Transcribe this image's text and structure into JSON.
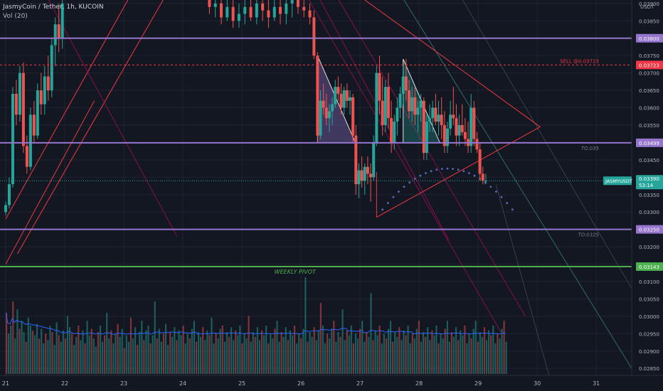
{
  "header": {
    "symbol_line": "JasmyCoin / Tether, 1h, KUCOIN",
    "indicator": "Vol (20)"
  },
  "axis_currency": "USDT",
  "price_ticks": [
    "0.03900",
    "0.03850",
    "0.03800",
    "0.03750",
    "0.03700",
    "0.03650",
    "0.03600",
    "0.03550",
    "0.03500",
    "0.03450",
    "0.03400",
    "0.03350",
    "0.03300",
    "0.03250",
    "0.03200",
    "0.03150",
    "0.03100",
    "0.03050",
    "0.03000",
    "0.02950",
    "0.02900",
    "0.02850"
  ],
  "date_ticks": [
    "21",
    "22",
    "23",
    "24",
    "25",
    "26",
    "27",
    "28",
    "29",
    "30",
    "31"
  ],
  "annotations": {
    "sell": "SELL @0.03723",
    "tp1": "TO.035",
    "tp2": "TO.0325",
    "pivot": "WEEKLY PIVOT"
  },
  "price_tags": {
    "resistance": "0.03800",
    "sell": "0.03723",
    "tp1": "0.03499",
    "current_symbol": "JASMYUSDT",
    "current_price": "0.03390",
    "countdown": "53:14",
    "tp2": "0.03250",
    "pivot": "0.03143"
  },
  "colors": {
    "background": "#131722",
    "up": "#26a69a",
    "down": "#ef5350",
    "level": "#9575cd",
    "pivot": "#4caf50",
    "sell": "#f23645",
    "trend": "#f23645",
    "channel": "#880e4f",
    "volume_ma": "#2962ff",
    "dots": "#5c6bc0"
  },
  "chart_data": {
    "type": "candlestick",
    "timeframe": "1h",
    "x_start": 21,
    "x_end": 31.6,
    "ylim": [
      0.0283,
      0.0391
    ],
    "horizontal_levels": [
      {
        "label": "resistance",
        "value": 0.038
      },
      {
        "label": "SELL @0.03723",
        "value": 0.03723
      },
      {
        "label": "TO.035",
        "value": 0.03499
      },
      {
        "label": "TO.0325",
        "value": 0.0325
      },
      {
        "label": "WEEKLY PIVOT",
        "value": 0.03143
      }
    ],
    "candles": [
      [
        21.0,
        0.033,
        0.0333,
        0.0329,
        0.0332
      ],
      [
        21.06,
        0.0332,
        0.034,
        0.0331,
        0.0338
      ],
      [
        21.12,
        0.0338,
        0.0366,
        0.0337,
        0.0364
      ],
      [
        21.18,
        0.0364,
        0.0368,
        0.0355,
        0.0358
      ],
      [
        21.24,
        0.0358,
        0.0372,
        0.0356,
        0.037
      ],
      [
        21.3,
        0.037,
        0.0373,
        0.0347,
        0.0349
      ],
      [
        21.36,
        0.0349,
        0.0352,
        0.0341,
        0.0343
      ],
      [
        21.42,
        0.0343,
        0.036,
        0.0342,
        0.0358
      ],
      [
        21.48,
        0.0358,
        0.0362,
        0.035,
        0.0352
      ],
      [
        21.54,
        0.0352,
        0.0367,
        0.0351,
        0.0365
      ],
      [
        21.6,
        0.0365,
        0.037,
        0.0358,
        0.0361
      ],
      [
        21.66,
        0.0361,
        0.0372,
        0.0358,
        0.0369
      ],
      [
        21.72,
        0.0369,
        0.0375,
        0.0362,
        0.0365
      ],
      [
        21.78,
        0.0365,
        0.038,
        0.0363,
        0.0378
      ],
      [
        21.84,
        0.0378,
        0.0386,
        0.0372,
        0.0384
      ],
      [
        21.9,
        0.0384,
        0.039,
        0.0376,
        0.038
      ],
      [
        21.96,
        0.038,
        0.0392,
        0.0377,
        0.039
      ],
      [
        24.45,
        0.0391,
        0.0392,
        0.0387,
        0.0389
      ],
      [
        24.55,
        0.0389,
        0.0391,
        0.0386,
        0.039
      ],
      [
        24.65,
        0.039,
        0.0391,
        0.0384,
        0.0386
      ],
      [
        24.75,
        0.0386,
        0.0391,
        0.0385,
        0.0389
      ],
      [
        24.85,
        0.0389,
        0.0391,
        0.0383,
        0.0385
      ],
      [
        24.95,
        0.0385,
        0.039,
        0.0383,
        0.0387
      ],
      [
        25.05,
        0.0387,
        0.0391,
        0.0384,
        0.0389
      ],
      [
        25.15,
        0.0389,
        0.0391,
        0.0385,
        0.0386
      ],
      [
        25.25,
        0.0386,
        0.0391,
        0.0384,
        0.039
      ],
      [
        25.35,
        0.039,
        0.0391,
        0.0385,
        0.0388
      ],
      [
        25.45,
        0.0388,
        0.0391,
        0.0383,
        0.0386
      ],
      [
        25.55,
        0.0386,
        0.0391,
        0.0385,
        0.0389
      ],
      [
        25.65,
        0.0389,
        0.0391,
        0.0384,
        0.0387
      ],
      [
        25.75,
        0.0387,
        0.0391,
        0.0384,
        0.039
      ],
      [
        25.85,
        0.039,
        0.0392,
        0.0386,
        0.0391
      ],
      [
        25.95,
        0.0391,
        0.0392,
        0.0387,
        0.0389
      ],
      [
        26.05,
        0.0389,
        0.0391,
        0.0386,
        0.0388
      ],
      [
        26.15,
        0.0388,
        0.039,
        0.0384,
        0.0386
      ],
      [
        26.22,
        0.0386,
        0.0388,
        0.0374,
        0.0375
      ],
      [
        26.28,
        0.0375,
        0.0376,
        0.035,
        0.0352
      ],
      [
        26.33,
        0.0352,
        0.0365,
        0.0351,
        0.0362
      ],
      [
        26.38,
        0.0362,
        0.0367,
        0.0358,
        0.036
      ],
      [
        26.43,
        0.036,
        0.0364,
        0.0355,
        0.0357
      ],
      [
        26.48,
        0.0357,
        0.0361,
        0.0353,
        0.0359
      ],
      [
        26.53,
        0.0359,
        0.0363,
        0.0355,
        0.0361
      ],
      [
        26.58,
        0.0361,
        0.0368,
        0.036,
        0.0366
      ],
      [
        26.63,
        0.0366,
        0.0369,
        0.0362,
        0.0364
      ],
      [
        26.68,
        0.0364,
        0.0367,
        0.0358,
        0.036
      ],
      [
        26.73,
        0.036,
        0.0366,
        0.0358,
        0.0365
      ],
      [
        26.78,
        0.0365,
        0.0367,
        0.036,
        0.0362
      ],
      [
        26.83,
        0.0362,
        0.0365,
        0.0358,
        0.0363
      ],
      [
        26.88,
        0.0363,
        0.0364,
        0.035,
        0.0352
      ],
      [
        26.93,
        0.0352,
        0.0355,
        0.0335,
        0.0338
      ],
      [
        26.98,
        0.0338,
        0.0344,
        0.0334,
        0.0342
      ],
      [
        27.03,
        0.0342,
        0.0346,
        0.0337,
        0.0339
      ],
      [
        27.08,
        0.0339,
        0.0344,
        0.0335,
        0.0343
      ],
      [
        27.13,
        0.0343,
        0.0346,
        0.0338,
        0.0341
      ],
      [
        27.18,
        0.0341,
        0.0344,
        0.0333,
        0.034
      ],
      [
        27.23,
        0.034,
        0.0352,
        0.0339,
        0.035
      ],
      [
        27.28,
        0.035,
        0.0372,
        0.0349,
        0.037
      ],
      [
        27.33,
        0.037,
        0.0375,
        0.0358,
        0.0362
      ],
      [
        27.38,
        0.0362,
        0.0369,
        0.0352,
        0.0355
      ],
      [
        27.43,
        0.0355,
        0.0368,
        0.0353,
        0.0366
      ],
      [
        27.48,
        0.0366,
        0.037,
        0.0354,
        0.0357
      ],
      [
        27.53,
        0.0357,
        0.0362,
        0.0347,
        0.035
      ],
      [
        27.58,
        0.035,
        0.0358,
        0.0348,
        0.0356
      ],
      [
        27.63,
        0.0356,
        0.0363,
        0.0352,
        0.036
      ],
      [
        27.68,
        0.036,
        0.0366,
        0.0357,
        0.0364
      ],
      [
        27.73,
        0.0364,
        0.0372,
        0.0361,
        0.0369
      ],
      [
        27.78,
        0.0369,
        0.0374,
        0.0362,
        0.0365
      ],
      [
        27.83,
        0.0365,
        0.0368,
        0.0357,
        0.0359
      ],
      [
        27.88,
        0.0359,
        0.0366,
        0.0356,
        0.0363
      ],
      [
        27.93,
        0.0363,
        0.0366,
        0.0355,
        0.0358
      ],
      [
        27.98,
        0.0358,
        0.0362,
        0.0353,
        0.036
      ],
      [
        28.03,
        0.036,
        0.0364,
        0.0356,
        0.0362
      ],
      [
        28.08,
        0.0362,
        0.0363,
        0.0345,
        0.0347
      ],
      [
        28.13,
        0.0347,
        0.0358,
        0.0345,
        0.0356
      ],
      [
        28.18,
        0.0356,
        0.0361,
        0.0353,
        0.0357
      ],
      [
        28.23,
        0.0357,
        0.0362,
        0.0353,
        0.036
      ],
      [
        28.28,
        0.036,
        0.0364,
        0.0355,
        0.0356
      ],
      [
        28.33,
        0.0356,
        0.0362,
        0.0352,
        0.0358
      ],
      [
        28.38,
        0.0358,
        0.0363,
        0.0351,
        0.0355
      ],
      [
        28.43,
        0.0355,
        0.0359,
        0.0347,
        0.0349
      ],
      [
        28.48,
        0.0349,
        0.0356,
        0.0347,
        0.0354
      ],
      [
        28.53,
        0.0354,
        0.0362,
        0.0352,
        0.0358
      ],
      [
        28.58,
        0.0358,
        0.0366,
        0.0355,
        0.0357
      ],
      [
        28.63,
        0.0357,
        0.0361,
        0.0349,
        0.0352
      ],
      [
        28.68,
        0.0352,
        0.0358,
        0.0349,
        0.0355
      ],
      [
        28.73,
        0.0355,
        0.0361,
        0.0352,
        0.0353
      ],
      [
        28.78,
        0.0353,
        0.0357,
        0.0349,
        0.0351
      ],
      [
        28.83,
        0.0351,
        0.0356,
        0.0347,
        0.0349
      ],
      [
        28.88,
        0.0349,
        0.0364,
        0.0347,
        0.036
      ],
      [
        28.93,
        0.036,
        0.0362,
        0.0349,
        0.0351
      ],
      [
        28.98,
        0.0351,
        0.0353,
        0.0347,
        0.0348
      ],
      [
        29.03,
        0.0348,
        0.035,
        0.0339,
        0.0341
      ],
      [
        29.08,
        0.0341,
        0.0343,
        0.0338,
        0.0339
      ],
      [
        29.13,
        0.0339,
        0.0341,
        0.0338,
        0.0339
      ]
    ],
    "volume": [
      38,
      25,
      30,
      45,
      22,
      40,
      28,
      33,
      26,
      20,
      35,
      30,
      27,
      24,
      31,
      22,
      28,
      19,
      25,
      21,
      30,
      26,
      18,
      32,
      24,
      20,
      27,
      22,
      36,
      29,
      25,
      18,
      23,
      30,
      21,
      27,
      19,
      33,
      24,
      28,
      22,
      17,
      26,
      30,
      20,
      24,
      38,
      22,
      27,
      19,
      25,
      31,
      23,
      28,
      16,
      24,
      20,
      35,
      22,
      29,
      18,
      26,
      33,
      21,
      27,
      30,
      19,
      24,
      45,
      22,
      28,
      20,
      25,
      31,
      18,
      26,
      23,
      29,
      21,
      27,
      24,
      30,
      19,
      25,
      22,
      28,
      33,
      20,
      26,
      23,
      29,
      21,
      27,
      24,
      35,
      19,
      25,
      22,
      28,
      30,
      20,
      26,
      23,
      29,
      21,
      27,
      24,
      30,
      19,
      25,
      22,
      36,
      20,
      26,
      23,
      29,
      21,
      27,
      24,
      30,
      19,
      25,
      22,
      28,
      33,
      20,
      26,
      23,
      29,
      21,
      27,
      24,
      30,
      19,
      25,
      22,
      28,
      60,
      20,
      26,
      23,
      29,
      21,
      27,
      44,
      30,
      19,
      25,
      22,
      28,
      33,
      20,
      26,
      23,
      40,
      21,
      27,
      24,
      30,
      19,
      25,
      22,
      28,
      33,
      20,
      26,
      23,
      50,
      21,
      27,
      24,
      30,
      19,
      25,
      22,
      28,
      33,
      20,
      26,
      23,
      29,
      21,
      27,
      24,
      30,
      19,
      25,
      22,
      28,
      33,
      20,
      26,
      23,
      29,
      21,
      27,
      24,
      30,
      19,
      25,
      22,
      28,
      33,
      20,
      26,
      23,
      29,
      21,
      27,
      24,
      30,
      19,
      25,
      22,
      28,
      33,
      20,
      26,
      23,
      29,
      21,
      27,
      24,
      30,
      19,
      25,
      22,
      28,
      33,
      20
    ]
  }
}
